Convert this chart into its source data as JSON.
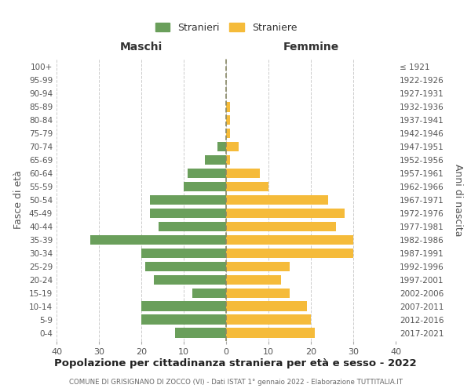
{
  "age_groups": [
    "0-4",
    "5-9",
    "10-14",
    "15-19",
    "20-24",
    "25-29",
    "30-34",
    "35-39",
    "40-44",
    "45-49",
    "50-54",
    "55-59",
    "60-64",
    "65-69",
    "70-74",
    "75-79",
    "80-84",
    "85-89",
    "90-94",
    "95-99",
    "100+"
  ],
  "birth_years": [
    "2017-2021",
    "2012-2016",
    "2007-2011",
    "2002-2006",
    "1997-2001",
    "1992-1996",
    "1987-1991",
    "1982-1986",
    "1977-1981",
    "1972-1976",
    "1967-1971",
    "1962-1966",
    "1957-1961",
    "1952-1956",
    "1947-1951",
    "1942-1946",
    "1937-1941",
    "1932-1936",
    "1927-1931",
    "1922-1926",
    "≤ 1921"
  ],
  "maschi": [
    12,
    20,
    20,
    8,
    17,
    19,
    20,
    32,
    16,
    18,
    18,
    10,
    9,
    5,
    2,
    0,
    0,
    0,
    0,
    0,
    0
  ],
  "femmine": [
    21,
    20,
    19,
    15,
    13,
    15,
    30,
    30,
    26,
    28,
    24,
    10,
    8,
    1,
    3,
    1,
    1,
    1,
    0,
    0,
    0
  ],
  "male_color": "#6a9f5b",
  "female_color": "#f5bb3a",
  "title": "Popolazione per cittadinanza straniera per età e sesso - 2022",
  "subtitle": "COMUNE DI GRISIGNANO DI ZOCCO (VI) - Dati ISTAT 1° gennaio 2022 - Elaborazione TUTTITALIA.IT",
  "xlabel_left": "Maschi",
  "xlabel_right": "Femmine",
  "ylabel_left": "Fasce di età",
  "ylabel_right": "Anni di nascita",
  "legend_male": "Stranieri",
  "legend_female": "Straniere",
  "xlim": 40,
  "background_color": "#ffffff",
  "grid_color": "#cccccc"
}
